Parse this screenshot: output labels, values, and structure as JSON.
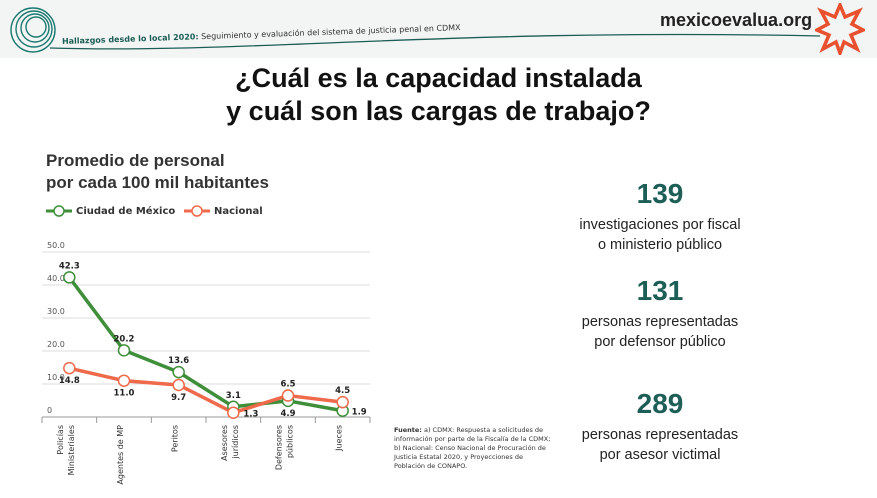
{
  "header": {
    "subtitle_bold": "Hallazgos desde lo local 2020:",
    "subtitle": " Seguimiento y evaluación del sistema de justicia penal en CDMX",
    "brand": "mexicoevalua.org"
  },
  "title": {
    "line1": "¿Cuál es la capacidad instalada",
    "line2": "y cuál son las cargas de trabajo?"
  },
  "stats": [
    {
      "number": "139",
      "line1": "investigaciones por fiscal",
      "line2": "o ministerio público"
    },
    {
      "number": "131",
      "line1": "personas representadas",
      "line2": "por defensor público"
    },
    {
      "number": "289",
      "line1": "personas representadas",
      "line2": "por asesor victimal"
    }
  ],
  "source": {
    "label": "Fuente:",
    "text": " a) CDMX: Respuesta a solicitudes de información por parte de la Fiscalía de la CDMX; b) Nacional: Censo Nacional de Procuración de Justicia Estatal 2020, y Proyecciones de Población de CONAPO."
  },
  "colors": {
    "cdmx": "#3e8e3a",
    "nacional": "#ef6a4a",
    "accent": "#1d5e57"
  },
  "chart_data": {
    "type": "line",
    "title_line1": "Promedio de personal",
    "title_line2": "por cada 100 mil habitantes",
    "categories": [
      [
        "Policías",
        "Ministeriales"
      ],
      [
        "Agentes de MP"
      ],
      [
        "Peritos"
      ],
      [
        "Asesores",
        "jurídicos"
      ],
      [
        "Defensores",
        "públicos"
      ],
      [
        "Jueces"
      ]
    ],
    "yticks": [
      "0",
      "10.0",
      "20.0",
      "30.0",
      "40.0",
      "50.0"
    ],
    "ylim": [
      0,
      50
    ],
    "grid": true,
    "legend_position": "top-left",
    "series": [
      {
        "name": "Ciudad de México",
        "values": [
          42.3,
          20.2,
          13.6,
          3.1,
          4.9,
          1.9
        ],
        "labels": [
          "42.3",
          "20.2",
          "13.6",
          "3.1",
          "4.9",
          "1.9"
        ]
      },
      {
        "name": "Nacional",
        "values": [
          14.8,
          11.0,
          9.7,
          1.3,
          6.5,
          4.5
        ],
        "labels": [
          "14.8",
          "11.0",
          "9.7",
          "1.3",
          "6.5",
          "4.5"
        ]
      }
    ]
  }
}
